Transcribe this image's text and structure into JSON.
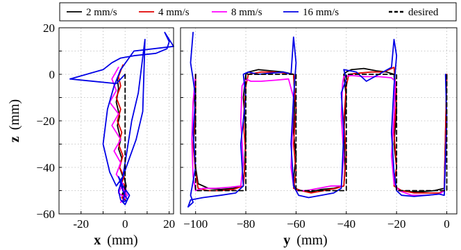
{
  "chart_data": [
    {
      "type": "line",
      "panel": "left",
      "xlabel_main": "x",
      "xlabel_unit": "(mm)",
      "ylabel_main": "z",
      "ylabel_unit": "(mm)",
      "xlim": [
        -30,
        22
      ],
      "ylim": [
        -60,
        20
      ],
      "xticks": [
        -20,
        -10,
        0,
        10,
        20
      ],
      "xtick_labels": [
        "-20",
        "",
        "0",
        "",
        "20"
      ],
      "yticks": [
        20,
        10,
        0,
        -10,
        -20,
        -30,
        -40,
        -50,
        -60
      ],
      "ytick_labels": [
        "20",
        "",
        "0",
        "",
        "−20",
        "",
        "−40",
        "",
        "−60"
      ],
      "grid": true,
      "series": [
        {
          "name": "2 mm/s",
          "color": "#000000",
          "dash": false,
          "x": [
            -2,
            -3.5,
            -3,
            -4,
            -2.5,
            -3.5,
            -2,
            -3,
            -1.5,
            -2.5,
            -1,
            -2,
            -0.5,
            -1.5,
            0,
            -1,
            0.5,
            -0.5,
            0.5,
            0
          ],
          "y": [
            2,
            -2,
            -6,
            -12,
            -18,
            -22,
            -28,
            -32,
            -36,
            -40,
            -44,
            -47,
            -50,
            -52,
            -54,
            -51,
            -48,
            -44,
            -48,
            -50
          ]
        },
        {
          "name": "4 mm/s",
          "color": "#e00000",
          "dash": false,
          "x": [
            -1,
            -3,
            -2,
            -4,
            -2,
            -3.5,
            -1.5,
            -3,
            -1,
            -2.5,
            -0.5,
            -2,
            0,
            -1.5,
            -0.5,
            0.5,
            -0.5,
            0
          ],
          "y": [
            4,
            -1,
            -5,
            -10,
            -15,
            -20,
            -25,
            -30,
            -35,
            -40,
            -44,
            -48,
            -51,
            -53,
            -54,
            -50,
            -47,
            -50
          ]
        },
        {
          "name": "8 mm/s",
          "color": "#ff00ff",
          "dash": false,
          "x": [
            -3,
            -6,
            -4,
            -7,
            -3,
            -6,
            -2,
            -5,
            -2,
            -4,
            -1,
            -3,
            0,
            -2,
            1,
            -1,
            0
          ],
          "y": [
            3,
            -2,
            -7,
            -12,
            -17,
            -22,
            -28,
            -33,
            -38,
            -43,
            -47,
            -51,
            -53,
            -55,
            -52,
            -49,
            -51
          ]
        },
        {
          "name": "16 mm/s",
          "color": "#0000e6",
          "dash": false,
          "x": [
            0,
            -4,
            -25,
            -10,
            -6,
            -2,
            4,
            14,
            19,
            20,
            18,
            22,
            4,
            -2,
            -5,
            -8,
            -10,
            -7,
            -4,
            -1,
            2,
            5,
            8,
            9,
            6,
            3,
            1,
            -1,
            -3,
            -2,
            0,
            2,
            -1,
            -3,
            -1,
            1,
            -1,
            0
          ],
          "y": [
            0,
            -4,
            -2,
            2,
            5,
            7,
            8,
            9,
            11,
            14,
            18,
            12,
            10,
            2,
            -5,
            -15,
            -30,
            -42,
            -48,
            -44,
            -36,
            -28,
            -16,
            15,
            -8,
            -20,
            -32,
            -44,
            -50,
            -54,
            -56,
            -52,
            -48,
            -44,
            -50,
            -54,
            -55,
            -50
          ]
        },
        {
          "name": "desired",
          "color": "#000000",
          "dash": true,
          "x": [
            0,
            0,
            0
          ],
          "y": [
            0,
            -25,
            -50
          ]
        }
      ]
    },
    {
      "type": "line",
      "panel": "right",
      "xlabel_main": "y",
      "xlabel_unit": "(mm)",
      "xlim": [
        -106,
        4
      ],
      "ylim": [
        -60,
        20
      ],
      "xticks": [
        -100,
        -80,
        -60,
        -40,
        -20,
        0
      ],
      "xtick_labels": [
        "−100",
        "−80",
        "−60",
        "−40",
        "−20",
        "0"
      ],
      "yticks": [
        20,
        10,
        0,
        -10,
        -20,
        -30,
        -40,
        -50,
        -60
      ],
      "grid": true,
      "series": [
        {
          "name": "2 mm/s",
          "color": "#000000",
          "dash": false,
          "x": [
            -100,
            -100.5,
            -100,
            -101,
            -100,
            -99,
            -95,
            -90,
            -85,
            -81,
            -80.5,
            -80,
            -81,
            -80,
            -79,
            -75,
            -70,
            -65,
            -61,
            -60.5,
            -61,
            -60,
            -61,
            -60.5,
            -58,
            -54,
            -50,
            -45,
            -41,
            -40.5,
            -41,
            -40,
            -41,
            -40,
            -38,
            -33,
            -28,
            -24,
            -21,
            -20,
            -21,
            -20,
            -21,
            -20,
            -18,
            -14,
            -10,
            -5,
            -1,
            -0.5,
            0
          ],
          "y": [
            0,
            -10,
            -20,
            -30,
            -40,
            -47,
            -49,
            -49.5,
            -49,
            -48,
            -40,
            -25,
            -10,
            0,
            1,
            2,
            1.5,
            1,
            0,
            -10,
            -25,
            -35,
            -45,
            -49,
            -50,
            -50.5,
            -49.5,
            -49,
            -48,
            -40,
            -25,
            -10,
            0,
            1,
            2,
            2.5,
            1.5,
            1,
            0,
            -15,
            -30,
            -40,
            -47,
            -49,
            -50,
            -50.5,
            -50.5,
            -50,
            -49,
            -25,
            0
          ]
        },
        {
          "name": "4 mm/s",
          "color": "#e00000",
          "dash": false,
          "x": [
            -100,
            -100,
            -101,
            -100,
            -99,
            -95,
            -90,
            -85,
            -81,
            -80,
            -81,
            -80,
            -79,
            -74,
            -69,
            -64,
            -61,
            -60,
            -61,
            -60,
            -61,
            -58,
            -54,
            -49,
            -44,
            -41,
            -40,
            -41,
            -40,
            -39,
            -35,
            -30,
            -25,
            -21,
            -20,
            -21,
            -20,
            -21,
            -18,
            -13,
            -8,
            -3,
            -1,
            -0.5,
            0
          ],
          "y": [
            0,
            -15,
            -30,
            -42,
            -49,
            -50,
            -50,
            -49.5,
            -48,
            -35,
            -20,
            -5,
            0,
            1,
            1,
            0.5,
            0,
            -15,
            -30,
            -42,
            -49,
            -50,
            -51,
            -50,
            -49,
            -48,
            -35,
            -20,
            -5,
            0,
            0.5,
            1,
            1,
            3,
            -10,
            -25,
            -40,
            -48,
            -50,
            -51,
            -51,
            -51,
            -50,
            -25,
            0
          ]
        },
        {
          "name": "8 mm/s",
          "color": "#ff00ff",
          "dash": false,
          "x": [
            -100,
            -101,
            -101.5,
            -101,
            -100,
            -97,
            -92,
            -86,
            -82,
            -81,
            -82,
            -81.5,
            -80,
            -78,
            -74,
            -68,
            -63,
            -61,
            -61.5,
            -62,
            -61,
            -60,
            -56,
            -51,
            -46,
            -42,
            -41,
            -42,
            -41.5,
            -41,
            -38,
            -33,
            -27,
            -22,
            -20.5,
            -21,
            -22,
            -21,
            -19,
            -14,
            -8,
            -3,
            -1,
            0
          ],
          "y": [
            0,
            -12,
            -28,
            -44,
            -50,
            -49,
            -49,
            -48.5,
            -48,
            -38,
            -20,
            -5,
            -2,
            -3,
            -3,
            -2.5,
            -2,
            -10,
            -25,
            -40,
            -48,
            -50,
            -50,
            -49,
            -48,
            -48,
            -35,
            -18,
            -4,
            -1,
            -0.5,
            -1,
            -1,
            -1.5,
            -3,
            -18,
            -35,
            -47,
            -50,
            -52,
            -52,
            -51.5,
            -50,
            -20
          ]
        },
        {
          "name": "16 mm/s",
          "color": "#0000e6",
          "dash": false,
          "x": [
            -101,
            -102,
            -101,
            -100,
            -101,
            -100,
            -102,
            -101,
            -103,
            -102,
            -97,
            -90,
            -84,
            -81,
            -82,
            -80,
            -81,
            -79,
            -75,
            -70,
            -65,
            -62,
            -61,
            -60,
            -61,
            -62,
            -61,
            -59,
            -55,
            -50,
            -45,
            -42,
            -41,
            -42,
            -40,
            -41,
            -36,
            -32,
            -27,
            -22,
            -21,
            -20,
            -21,
            -22,
            -21,
            -20,
            -18,
            -13,
            -8,
            -3,
            -1,
            0,
            -0.5
          ],
          "y": [
            18,
            5,
            -2,
            -10,
            -25,
            -40,
            -52,
            -55,
            -57,
            -54,
            -53,
            -52,
            -51,
            -48,
            -30,
            -10,
            0,
            1,
            0,
            0.5,
            1,
            0,
            16,
            5,
            -10,
            -30,
            -48,
            -52,
            -53,
            -52,
            -51,
            -49,
            -25,
            -8,
            -2,
            2,
            1,
            -3,
            0,
            3,
            15,
            8,
            -5,
            -25,
            -42,
            -50,
            -52,
            -52.5,
            -52,
            -51.5,
            -52,
            -20,
            0
          ]
        },
        {
          "name": "desired",
          "color": "#000000",
          "dash": true,
          "x": [
            -100,
            -100,
            -80,
            -80,
            -60,
            -60,
            -40,
            -40,
            -20,
            -20,
            0,
            0
          ],
          "y": [
            0,
            -50,
            -50,
            0,
            0,
            -50,
            -50,
            0,
            0,
            -50,
            -50,
            0
          ]
        }
      ]
    }
  ]
}
